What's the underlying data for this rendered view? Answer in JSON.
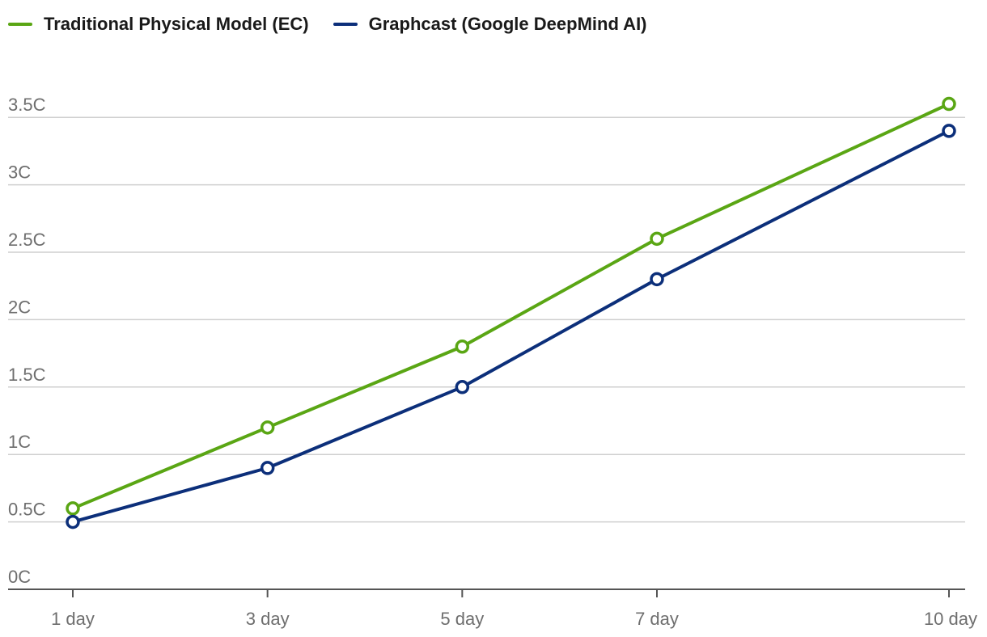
{
  "chart_data": {
    "type": "line",
    "categories": [
      "1 day",
      "3 day",
      "5 day",
      "7 day",
      "10 day"
    ],
    "x": [
      1,
      3,
      5,
      7,
      10
    ],
    "series": [
      {
        "name": "Traditional Physical Model (EC)",
        "color": "#5aa614",
        "values": [
          0.6,
          1.2,
          1.8,
          2.6,
          3.6
        ]
      },
      {
        "name": "Graphcast (Google DeepMind AI)",
        "color": "#0c2f7a",
        "values": [
          0.5,
          0.9,
          1.5,
          2.3,
          3.4
        ]
      }
    ],
    "yticks": [
      0,
      0.5,
      1,
      1.5,
      2,
      2.5,
      3,
      3.5
    ],
    "ytick_labels": [
      "0C",
      "0.5C",
      "1C",
      "1.5C",
      "2C",
      "2.5C",
      "3C",
      "3.5C"
    ],
    "ylim": [
      0,
      3.5
    ],
    "xlim": [
      1,
      10
    ],
    "grid": "horizontal",
    "legend": "top-left",
    "xlabel": "",
    "ylabel": ""
  }
}
